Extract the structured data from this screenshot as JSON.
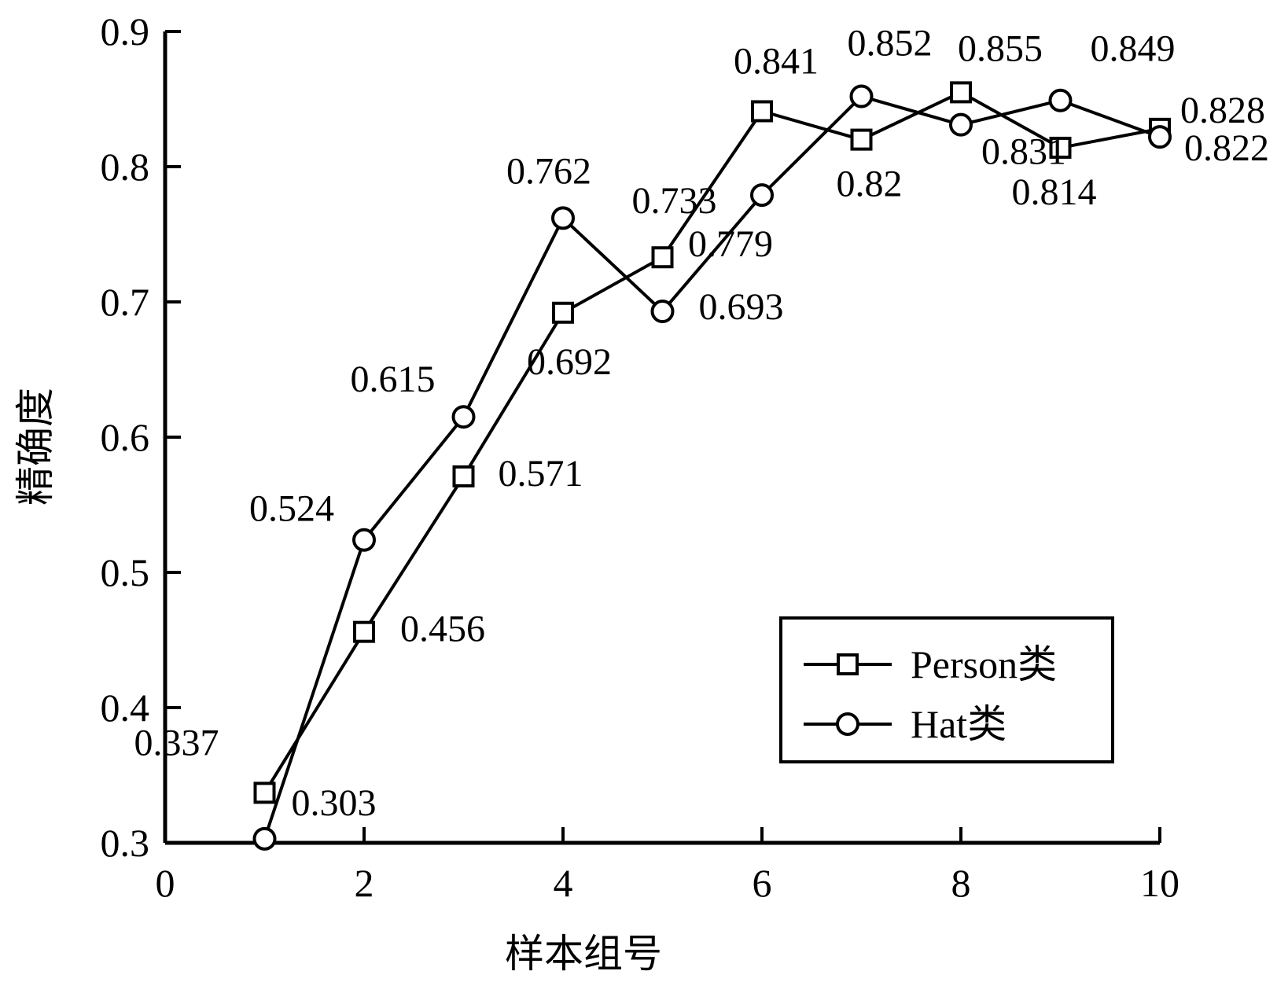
{
  "chart_data": {
    "type": "line",
    "xlabel": "样本组号",
    "ylabel": "精确度",
    "xlim": [
      0,
      10
    ],
    "ylim": [
      0.3,
      0.9
    ],
    "xticks": [
      0,
      2,
      4,
      6,
      8,
      10
    ],
    "yticks": [
      0.3,
      0.4,
      0.5,
      0.6,
      0.7,
      0.8,
      0.9
    ],
    "xtick_labels": [
      "0",
      "2",
      "4",
      "6",
      "8",
      "10"
    ],
    "ytick_labels": [
      "0.3",
      "0.4",
      "0.5",
      "0.6",
      "0.7",
      "0.8",
      "0.9"
    ],
    "grid": false,
    "legend_position": "bottom-right",
    "x": [
      1,
      2,
      3,
      4,
      5,
      6,
      7,
      8,
      9,
      10
    ],
    "series": [
      {
        "name": "Person类",
        "marker": "square",
        "color": "#000000",
        "values": [
          0.337,
          0.456,
          0.571,
          0.692,
          0.733,
          0.841,
          0.82,
          0.855,
          0.814,
          0.828
        ],
        "labels": [
          "0.337",
          "0.456",
          "0.571",
          "0.692",
          "0.733",
          "0.841",
          "0.82",
          "0.855",
          "0.814",
          "0.828"
        ]
      },
      {
        "name": "Hat类",
        "marker": "circle",
        "color": "#000000",
        "values": [
          0.303,
          0.524,
          0.615,
          0.762,
          0.693,
          0.779,
          0.852,
          0.831,
          0.849,
          0.822
        ],
        "labels": [
          "0.303",
          "0.524",
          "0.615",
          "0.762",
          "0.693",
          "0.779",
          "0.852",
          "0.831",
          "0.849",
          "0.822"
        ]
      }
    ]
  }
}
